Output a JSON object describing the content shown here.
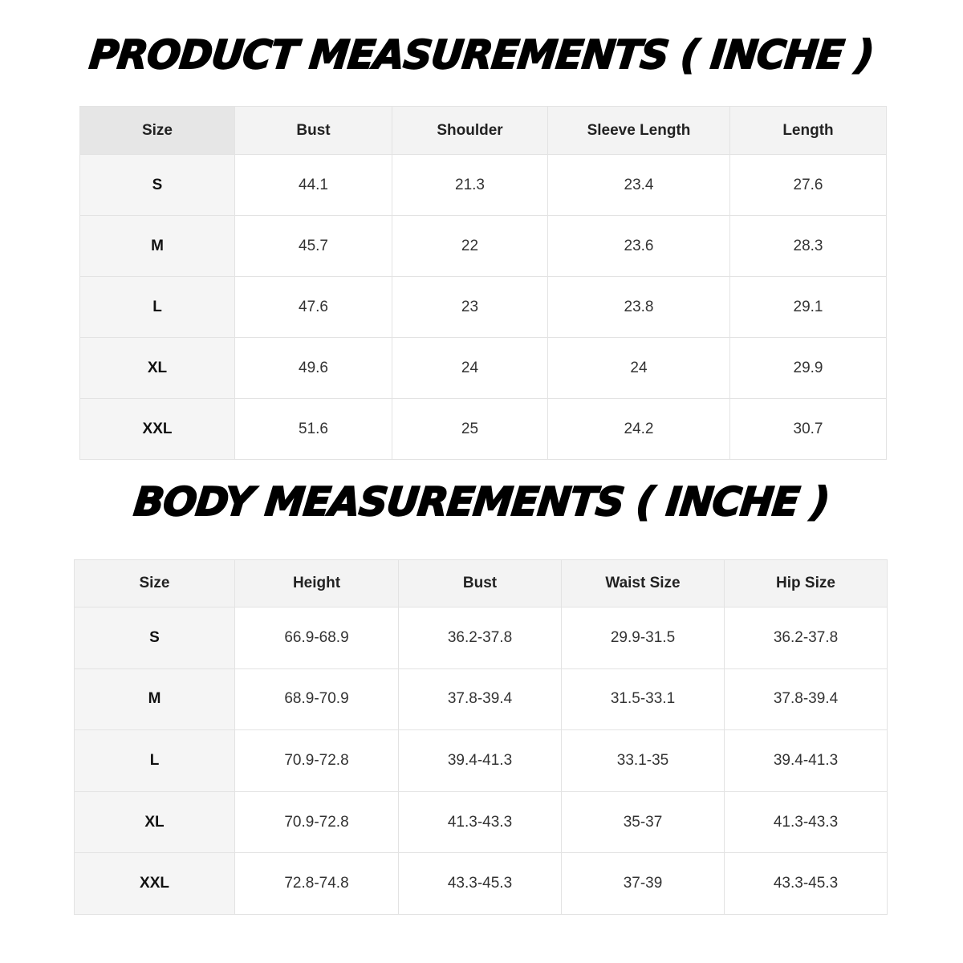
{
  "product": {
    "title": "PRODUCT MEASUREMENTS ( INCHE )",
    "header": [
      "Size",
      "Bust",
      "Shoulder",
      "Sleeve Length",
      "Length"
    ],
    "rows": [
      [
        "S",
        "44.1",
        "21.3",
        "23.4",
        "27.6"
      ],
      [
        "M",
        "45.7",
        "22",
        "23.6",
        "28.3"
      ],
      [
        "L",
        "47.6",
        "23",
        "23.8",
        "29.1"
      ],
      [
        "XL",
        "49.6",
        "24",
        "24",
        "29.9"
      ],
      [
        "XXL",
        "51.6",
        "25",
        "24.2",
        "30.7"
      ]
    ]
  },
  "body": {
    "title": "BODY MEASUREMENTS ( INCHE )",
    "header": [
      "Size",
      "Height",
      "Bust",
      "Waist Size",
      "Hip Size"
    ],
    "rows": [
      [
        "S",
        "66.9-68.9",
        "36.2-37.8",
        "29.9-31.5",
        "36.2-37.8"
      ],
      [
        "M",
        "68.9-70.9",
        "37.8-39.4",
        "31.5-33.1",
        "37.8-39.4"
      ],
      [
        "L",
        "70.9-72.8",
        "39.4-41.3",
        "33.1-35",
        "39.4-41.3"
      ],
      [
        "XL",
        "70.9-72.8",
        "41.3-43.3",
        "35-37",
        "41.3-43.3"
      ],
      [
        "XXL",
        "72.8-74.8",
        "43.3-45.3",
        "37-39",
        "43.3-45.3"
      ]
    ]
  }
}
